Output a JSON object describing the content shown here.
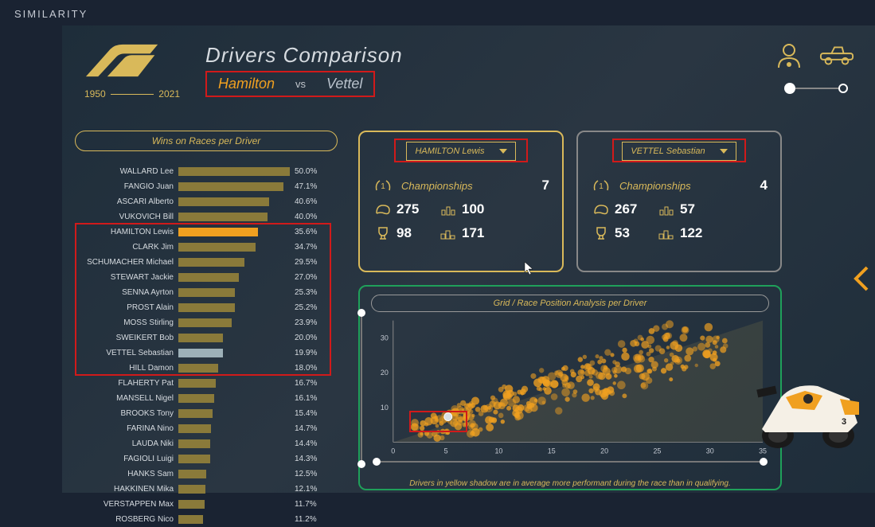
{
  "page_label": "SIMILARITY",
  "logo_years": {
    "from": "1950",
    "to": "2021"
  },
  "header": {
    "title": "Drivers Comparison",
    "driver1": "Hamilton",
    "vs": "vs",
    "driver2": "Vettel"
  },
  "colors": {
    "accent": "#f0a020",
    "gold": "#d9b95a",
    "red": "#d11a1a",
    "green": "#1fa05a",
    "bar_default": "#8a7a3a",
    "bar_hl2": "#9db0b8"
  },
  "left_chart": {
    "title": "Wins on Races per Driver",
    "max_pct": 50,
    "highlight_box": {
      "from_idx": 4,
      "to_idx": 13
    },
    "rows": [
      {
        "name": "WALLARD Lee",
        "pct": 50.0
      },
      {
        "name": "FANGIO Juan",
        "pct": 47.1
      },
      {
        "name": "ASCARI Alberto",
        "pct": 40.6
      },
      {
        "name": "VUKOVICH Bill",
        "pct": 40.0
      },
      {
        "name": "HAMILTON Lewis",
        "pct": 35.6,
        "hl": "hl"
      },
      {
        "name": "CLARK Jim",
        "pct": 34.7
      },
      {
        "name": "SCHUMACHER Michael",
        "pct": 29.5
      },
      {
        "name": "STEWART Jackie",
        "pct": 27.0
      },
      {
        "name": "SENNA Ayrton",
        "pct": 25.3
      },
      {
        "name": "PROST Alain",
        "pct": 25.2
      },
      {
        "name": "MOSS Stirling",
        "pct": 23.9
      },
      {
        "name": "SWEIKERT Bob",
        "pct": 20.0
      },
      {
        "name": "VETTEL Sebastian",
        "pct": 19.9,
        "hl": "hl2"
      },
      {
        "name": "HILL Damon",
        "pct": 18.0
      },
      {
        "name": "FLAHERTY Pat",
        "pct": 16.7
      },
      {
        "name": "MANSELL Nigel",
        "pct": 16.1
      },
      {
        "name": "BROOKS Tony",
        "pct": 15.4
      },
      {
        "name": "FARINA Nino",
        "pct": 14.7
      },
      {
        "name": "LAUDA Niki",
        "pct": 14.4
      },
      {
        "name": "FAGIOLI Luigi",
        "pct": 14.3
      },
      {
        "name": "HANKS Sam",
        "pct": 12.5
      },
      {
        "name": "HAKKINEN Mika",
        "pct": 12.1
      },
      {
        "name": "VERSTAPPEN Max",
        "pct": 11.7
      },
      {
        "name": "ROSBERG Nico",
        "pct": 11.2
      }
    ]
  },
  "card1": {
    "select": "HAMILTON Lewis",
    "champ_label": "Championships",
    "champ": "7",
    "races": "275",
    "fastest": "100",
    "wins": "98",
    "podiums": "171"
  },
  "card2": {
    "select": "VETTEL Sebastian",
    "champ_label": "Championships",
    "champ": "4",
    "races": "267",
    "fastest": "57",
    "wins": "53",
    "podiums": "122"
  },
  "scatter": {
    "title": "Grid / Race Position Analysis per Driver",
    "xlim": [
      0,
      35
    ],
    "ylim": [
      0,
      35
    ],
    "xticks": [
      0,
      5,
      10,
      15,
      20,
      25,
      30,
      35
    ],
    "yticks": [
      10,
      20,
      30
    ],
    "red_box": {
      "x0": 1.5,
      "y0": 3,
      "x1": 7,
      "y1": 9
    },
    "highlight_point": {
      "x": 5.2,
      "y": 7.3
    },
    "cloud_seed": 42
  },
  "footnote": "Drivers in yellow shadow are in average more performant during the race than in qualifying."
}
